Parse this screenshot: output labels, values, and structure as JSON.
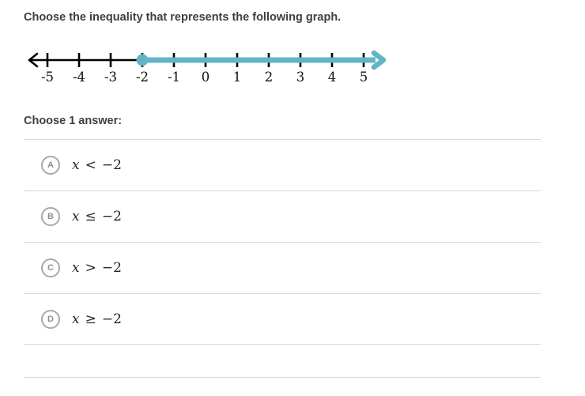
{
  "question": {
    "title": "Choose the inequality that represents the following graph."
  },
  "number_line": {
    "ticks": [
      -5,
      -4,
      -3,
      -2,
      -1,
      0,
      1,
      2,
      3,
      4,
      5
    ],
    "tick_labels": [
      "-5",
      "-4",
      "-3",
      "-2",
      "-1",
      "0",
      "1",
      "2",
      "3",
      "4",
      "5"
    ],
    "axis_color": "#000000",
    "label_color": "#111111",
    "ray": {
      "start": -2,
      "direction": "right",
      "endpoint": "closed",
      "color": "#62b4c6"
    }
  },
  "prompt": {
    "label": "Choose 1 answer:"
  },
  "choices": [
    {
      "letter": "A",
      "variable": "x",
      "operator": "<",
      "value": "−2",
      "display": "x < −2"
    },
    {
      "letter": "B",
      "variable": "x",
      "operator": "≤",
      "value": "−2",
      "display": "x ≤ −2"
    },
    {
      "letter": "C",
      "variable": "x",
      "operator": ">",
      "value": "−2",
      "display": "x > −2"
    },
    {
      "letter": "D",
      "variable": "x",
      "operator": "≥",
      "value": "−2",
      "display": "x ≥ −2"
    }
  ],
  "colors": {
    "text_dark": "#3b4045",
    "math_text": "#23262a",
    "divider": "#d6d8da",
    "radio_border": "#a5a9ac",
    "ray_teal": "#62b4c6"
  }
}
